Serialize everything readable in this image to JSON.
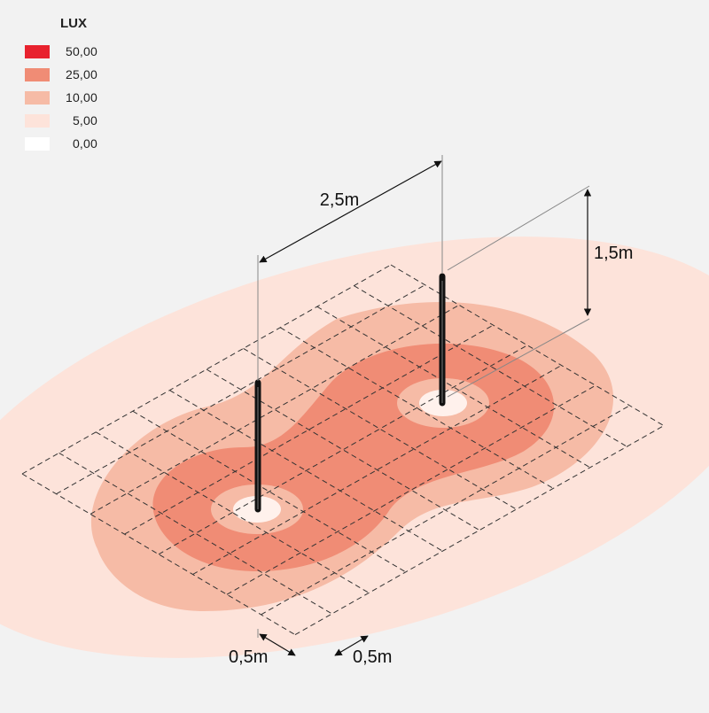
{
  "legend": {
    "title": "LUX",
    "items": [
      {
        "label": "50,00",
        "color": "#e8222e"
      },
      {
        "label": "25,00",
        "color": "#f08c75"
      },
      {
        "label": "10,00",
        "color": "#f6bba6"
      },
      {
        "label": "5,00",
        "color": "#fde3da"
      },
      {
        "label": "0,00",
        "color": "#ffffff"
      }
    ]
  },
  "dimensions": {
    "pole_spacing": "2,5m",
    "pole_height": "1,5m",
    "grid_cell_x": "0,5m",
    "grid_cell_y": "0,5m"
  }
}
